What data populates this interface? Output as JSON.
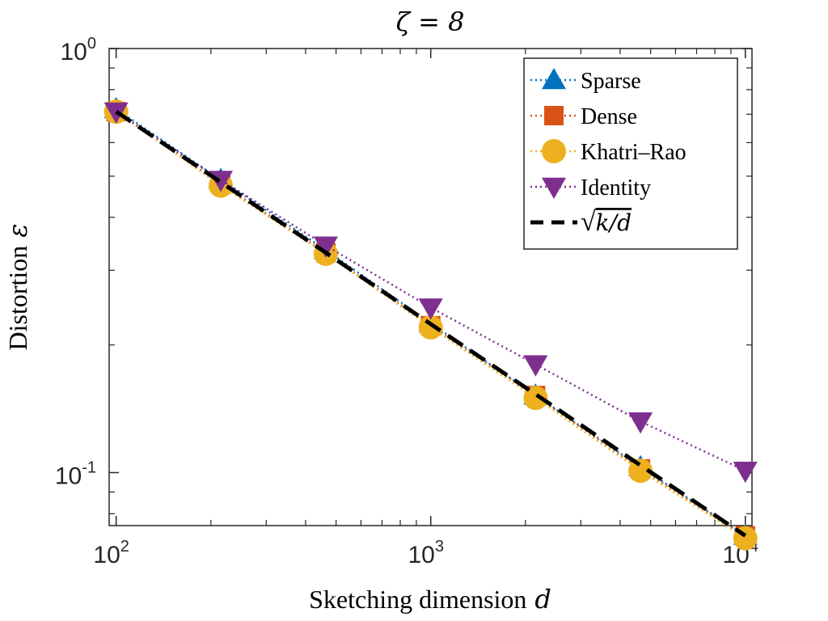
{
  "chart_data": {
    "type": "line",
    "title": "ζ = 8",
    "xlabel": "Sketching dimension",
    "xlabel_var": "d",
    "ylabel": "Distortion",
    "ylabel_var": "ε",
    "xscale": "log",
    "yscale": "log",
    "xlim": [
      95,
      10500
    ],
    "ylim": [
      0.075,
      1.0
    ],
    "xticks": [
      {
        "value": 100,
        "base": "10",
        "exp": "2"
      },
      {
        "value": 1000,
        "base": "10",
        "exp": "3"
      },
      {
        "value": 10000,
        "base": "10",
        "exp": "4"
      }
    ],
    "yticks": [
      {
        "value": 0.1,
        "base": "10",
        "exp": "-1"
      },
      {
        "value": 1.0,
        "base": "10",
        "exp": "0"
      }
    ],
    "grid": false,
    "legend_position": "top-right",
    "x": [
      100,
      215,
      464,
      1000,
      2154,
      4642,
      10000
    ],
    "series": [
      {
        "name": "Sparse",
        "marker": "triangle-up",
        "color": "#0072BD",
        "linestyle": "dotted",
        "values": [
          0.72,
          0.49,
          0.335,
          0.225,
          0.152,
          0.103,
          0.071
        ]
      },
      {
        "name": "Dense",
        "marker": "square",
        "color": "#D95319",
        "linestyle": "dotted",
        "values": [
          0.71,
          0.48,
          0.33,
          0.222,
          0.152,
          0.102,
          0.071
        ]
      },
      {
        "name": "Khatri–Rao",
        "marker": "circle",
        "color": "#EDB120",
        "linestyle": "dotted",
        "values": [
          0.71,
          0.475,
          0.328,
          0.22,
          0.15,
          0.101,
          0.07
        ]
      },
      {
        "name": "Identity",
        "marker": "triangle-down",
        "color": "#7E2F8E",
        "linestyle": "dotted",
        "values": [
          0.71,
          0.49,
          0.343,
          0.245,
          0.18,
          0.132,
          0.101
        ]
      },
      {
        "name_prefix": "√",
        "name": "k/d",
        "marker": "none",
        "color": "#000000",
        "linestyle": "dashed",
        "values": [
          0.71,
          0.484,
          0.33,
          0.224,
          0.153,
          0.104,
          0.071
        ]
      }
    ]
  }
}
